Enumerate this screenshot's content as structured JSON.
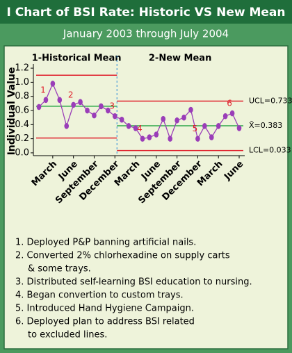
{
  "chart_data": {
    "type": "ichart",
    "title": "I Chart of BSI Rate: Historic VS New Mean",
    "subtitle": "January 2003 through July 2004",
    "y_label": "Individual Value",
    "categories": [
      null,
      null,
      "March",
      null,
      null,
      "June",
      null,
      null,
      "September",
      null,
      null,
      "December",
      null,
      null,
      "March",
      null,
      null,
      "June",
      null,
      null,
      "September",
      null,
      null,
      "December",
      null,
      null,
      "March",
      null,
      null,
      "June"
    ],
    "ylim": [
      -0.04,
      1.26
    ],
    "yticks": [
      {
        "value": 0,
        "label": "0.0"
      },
      0.2,
      0.4,
      0.6,
      0.8,
      {
        "value": 1,
        "label": "1.0"
      },
      1.2
    ],
    "series_color": "#9a3db8",
    "ucl_color": "#e01f2b",
    "mean_color": "#2ea84a",
    "divider_color": "#2f8fd8",
    "phases": [
      {
        "name": "1-Historical Mean",
        "values": [
          0.65,
          0.75,
          0.98,
          0.75,
          0.38,
          0.68,
          0.72,
          0.6,
          0.53,
          0.66,
          0.6,
          0.52
        ],
        "ucl": 1.1,
        "mean": 0.66,
        "lcl": 0.21
      },
      {
        "name": "2-New Mean",
        "values": [
          0.47,
          0.38,
          0.35,
          0.2,
          0.22,
          0.26,
          0.48,
          0.2,
          0.46,
          0.5,
          0.61,
          0.2,
          0.38,
          0.22,
          0.38,
          0.52,
          0.56,
          0.35
        ],
        "ucl": {
          "value": 0.733,
          "label": "UCL=0.733"
        },
        "mean": {
          "value": 0.383,
          "label": "X̄=0.383"
        },
        "lcl": {
          "value": 0.033,
          "label": "LCL=0.033"
        }
      }
    ],
    "annotations": [
      {
        "text": "1",
        "point": 1
      },
      {
        "text": "2",
        "point": 5
      },
      {
        "text": "3",
        "point": 11
      },
      {
        "text": "4",
        "point": 15
      },
      {
        "text": "5",
        "point": 23
      },
      {
        "text": "6",
        "point": 28
      }
    ]
  },
  "notes": [
    [
      "1. Deployed P&P banning artificial nails."
    ],
    [
      "2. Converted 2% chlorhexadine on supply carts",
      "& some trays."
    ],
    [
      "3. Distributed self-learning BSI education to nursing."
    ],
    [
      "4. Began convertion to custom trays."
    ],
    [
      "5. Introduced Hand Hygiene Campaign."
    ],
    [
      "6. Deployed plan to address BSI related",
      "to excluded lines."
    ]
  ]
}
